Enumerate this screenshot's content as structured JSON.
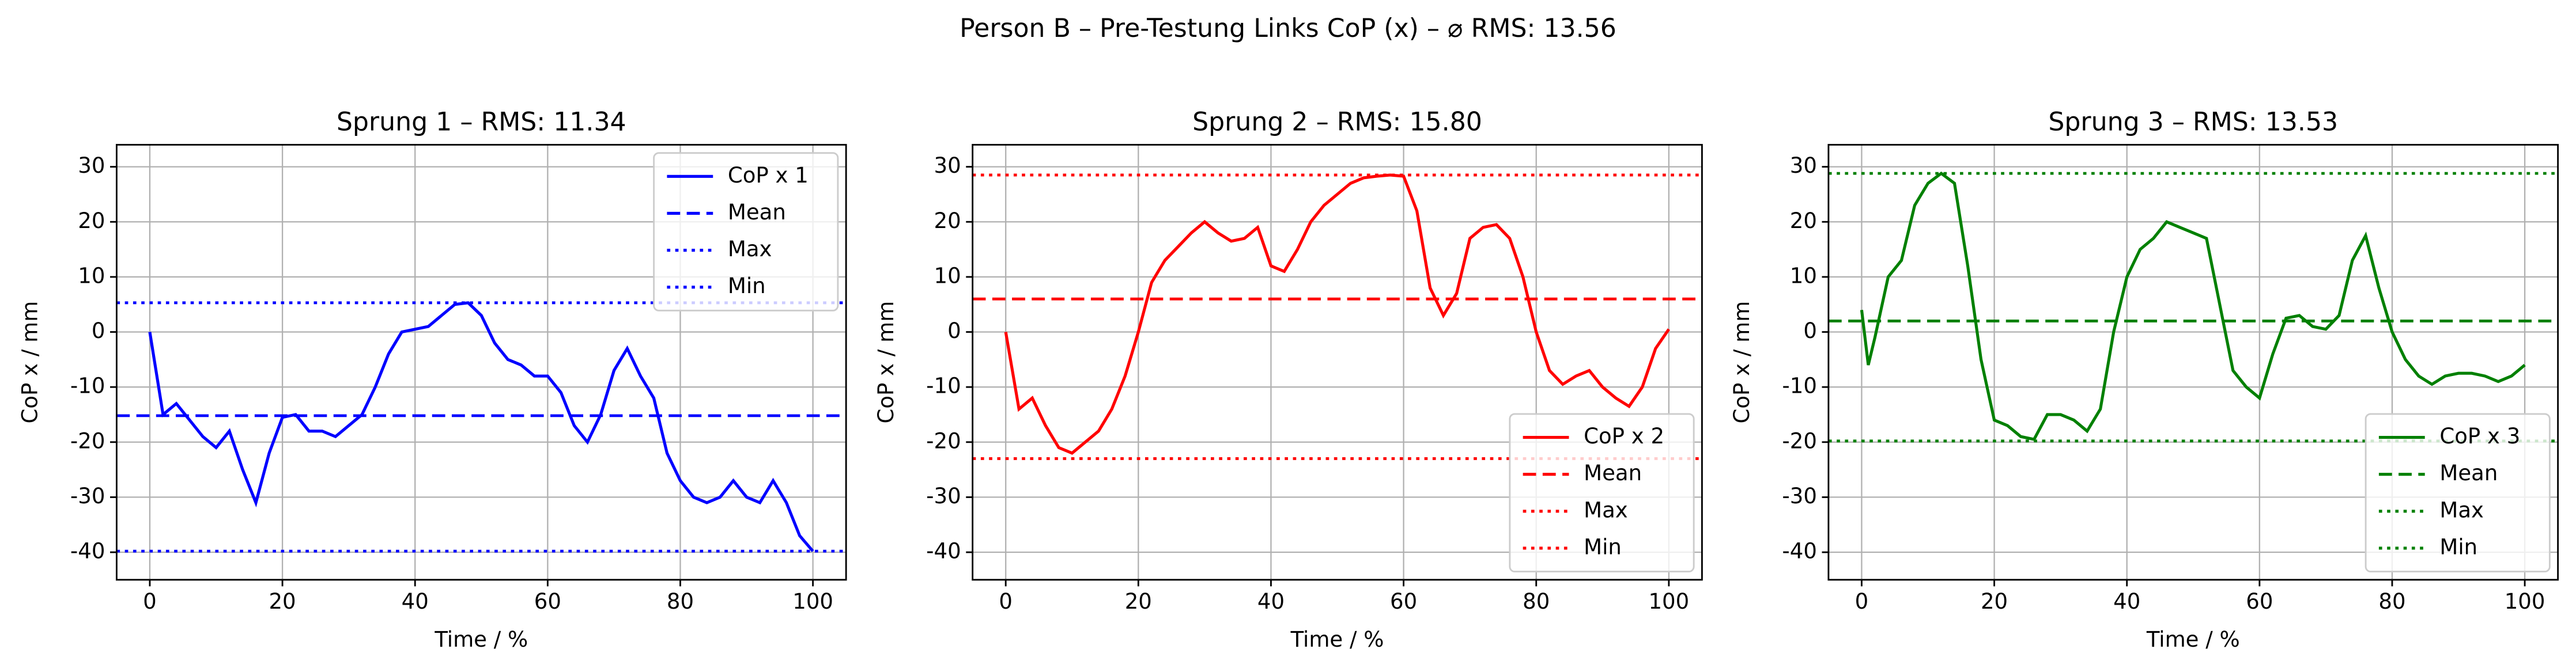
{
  "title": "Person B – Pre-Testung Links CoP (x) – ⌀ RMS: 13.56",
  "chart_data": [
    {
      "type": "line",
      "title": "Sprung 1 – RMS: 11.34",
      "xlabel": "Time / %",
      "ylabel": "CoP x / mm",
      "xlim": [
        -5,
        105
      ],
      "ylim": [
        -45,
        34
      ],
      "xticks": [
        0,
        20,
        40,
        60,
        80,
        100
      ],
      "yticks": [
        -40,
        -30,
        -20,
        -10,
        0,
        10,
        20,
        30
      ],
      "grid": true,
      "legend": "upper right",
      "x": [
        0,
        2,
        4,
        6,
        8,
        10,
        12,
        14,
        16,
        18,
        20,
        22,
        24,
        26,
        28,
        30,
        32,
        34,
        36,
        38,
        40,
        42,
        44,
        46,
        48,
        50,
        52,
        54,
        56,
        58,
        60,
        62,
        64,
        66,
        68,
        70,
        72,
        74,
        76,
        78,
        80,
        82,
        84,
        86,
        88,
        90,
        92,
        94,
        96,
        98,
        100
      ],
      "series": [
        {
          "name": "CoP x 1",
          "color": "#0000ff",
          "values": [
            0,
            -15,
            -13,
            -16,
            -19,
            -21,
            -18,
            -25,
            -31,
            -22,
            -15.5,
            -15,
            -18,
            -18,
            -19,
            -17,
            -15,
            -10,
            -4,
            0,
            0.5,
            1,
            3,
            5,
            5.3,
            3,
            -2,
            -5,
            -6,
            -8,
            -8,
            -11,
            -17,
            -20,
            -15,
            -7,
            -3,
            -8,
            -12,
            -22,
            -27,
            -30,
            -31,
            -30,
            -27,
            -30,
            -31,
            -27,
            -31,
            -37,
            -39.8
          ]
        }
      ],
      "hlines": [
        {
          "name": "Mean",
          "value": -15.2,
          "style": "dashed"
        },
        {
          "name": "Max",
          "value": 5.3,
          "style": "dotted"
        },
        {
          "name": "Min",
          "value": -39.8,
          "style": "dotted"
        }
      ]
    },
    {
      "type": "line",
      "title": "Sprung 2 – RMS: 15.80",
      "xlabel": "Time / %",
      "ylabel": "CoP x / mm",
      "xlim": [
        -5,
        105
      ],
      "ylim": [
        -45,
        34
      ],
      "xticks": [
        0,
        20,
        40,
        60,
        80,
        100
      ],
      "yticks": [
        -40,
        -30,
        -20,
        -10,
        0,
        10,
        20,
        30
      ],
      "grid": true,
      "legend": "lower right",
      "x": [
        0,
        2,
        4,
        6,
        8,
        10,
        12,
        14,
        16,
        18,
        20,
        22,
        24,
        26,
        28,
        30,
        32,
        34,
        36,
        38,
        40,
        42,
        44,
        46,
        48,
        50,
        52,
        54,
        56,
        58,
        60,
        62,
        64,
        66,
        68,
        70,
        72,
        74,
        76,
        78,
        80,
        82,
        84,
        86,
        88,
        90,
        92,
        94,
        96,
        98,
        100
      ],
      "series": [
        {
          "name": "CoP x 2",
          "color": "#ff0000",
          "values": [
            0,
            -14,
            -12,
            -17,
            -21,
            -22,
            -20,
            -18,
            -14,
            -8,
            0,
            9,
            13,
            15.5,
            18,
            20,
            18,
            16.5,
            17,
            19,
            12,
            11,
            15,
            20,
            23,
            25,
            27,
            28,
            28.3,
            28.5,
            28.3,
            22,
            8,
            3,
            7,
            17,
            19,
            19.5,
            17,
            10,
            0,
            -7,
            -9.5,
            -8,
            -7,
            -10,
            -12,
            -13.5,
            -10,
            -3,
            0.5
          ]
        }
      ],
      "hlines": [
        {
          "name": "Mean",
          "value": 6.0,
          "style": "dashed"
        },
        {
          "name": "Max",
          "value": 28.5,
          "style": "dotted"
        },
        {
          "name": "Min",
          "value": -23,
          "style": "dotted"
        }
      ]
    },
    {
      "type": "line",
      "title": "Sprung 3 – RMS: 13.53",
      "xlabel": "Time / %",
      "ylabel": "CoP x / mm",
      "xlim": [
        -5,
        105
      ],
      "ylim": [
        -45,
        34
      ],
      "xticks": [
        0,
        20,
        40,
        60,
        80,
        100
      ],
      "yticks": [
        -40,
        -30,
        -20,
        -10,
        0,
        10,
        20,
        30
      ],
      "grid": true,
      "legend": "lower right",
      "x": [
        0,
        1,
        2,
        4,
        6,
        8,
        10,
        12,
        14,
        16,
        18,
        20,
        22,
        24,
        26,
        28,
        30,
        32,
        34,
        36,
        38,
        40,
        42,
        44,
        46,
        48,
        50,
        52,
        54,
        56,
        58,
        60,
        62,
        64,
        66,
        68,
        70,
        72,
        74,
        76,
        78,
        80,
        82,
        84,
        86,
        88,
        90,
        92,
        94,
        96,
        98,
        100
      ],
      "series": [
        {
          "name": "CoP x 3",
          "color": "#008000",
          "values": [
            4,
            -6,
            -1,
            10,
            13,
            23,
            27,
            28.8,
            27,
            12,
            -5,
            -16,
            -17,
            -19,
            -19.5,
            -15,
            -15,
            -16,
            -18,
            -14,
            0,
            10,
            15,
            17,
            20,
            19,
            18,
            17,
            5,
            -7,
            -10,
            -12,
            -4,
            2.5,
            3,
            1,
            0.5,
            3,
            13,
            17.5,
            8,
            0,
            -5,
            -8,
            -9.5,
            -8,
            -7.5,
            -7.5,
            -8,
            -9,
            -8,
            -6
          ]
        }
      ],
      "hlines": [
        {
          "name": "Mean",
          "value": 2.0,
          "style": "dashed"
        },
        {
          "name": "Max",
          "value": 28.8,
          "style": "dotted"
        },
        {
          "name": "Min",
          "value": -19.8,
          "style": "dotted"
        }
      ]
    }
  ]
}
